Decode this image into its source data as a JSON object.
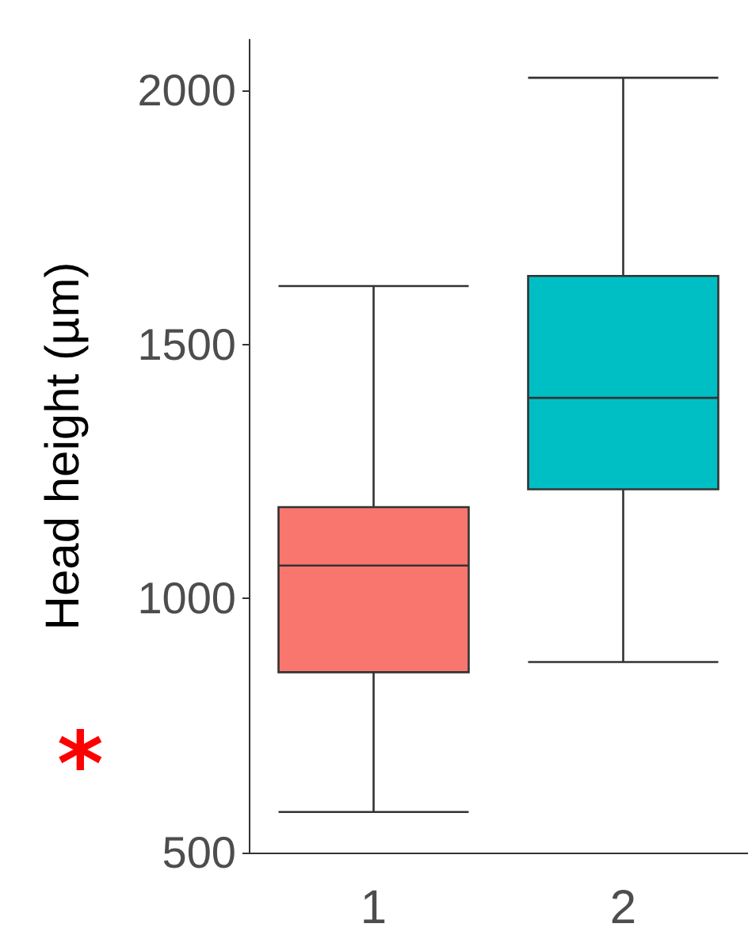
{
  "chart_data": {
    "type": "box",
    "ylabel": "Head height (µm)",
    "categories": [
      "1",
      "2"
    ],
    "boxes": [
      {
        "low": 580,
        "q1": 855,
        "median": 1065,
        "q3": 1180,
        "high": 1615
      },
      {
        "low": 875,
        "q1": 1215,
        "median": 1395,
        "q3": 1635,
        "high": 2025
      }
    ],
    "colors": [
      "#f8766d",
      "#00bfc4"
    ],
    "ylim": [
      500,
      2100
    ],
    "yticks": [
      500,
      1000,
      1500,
      2000
    ],
    "grid": false,
    "annotations": [
      "*"
    ]
  }
}
